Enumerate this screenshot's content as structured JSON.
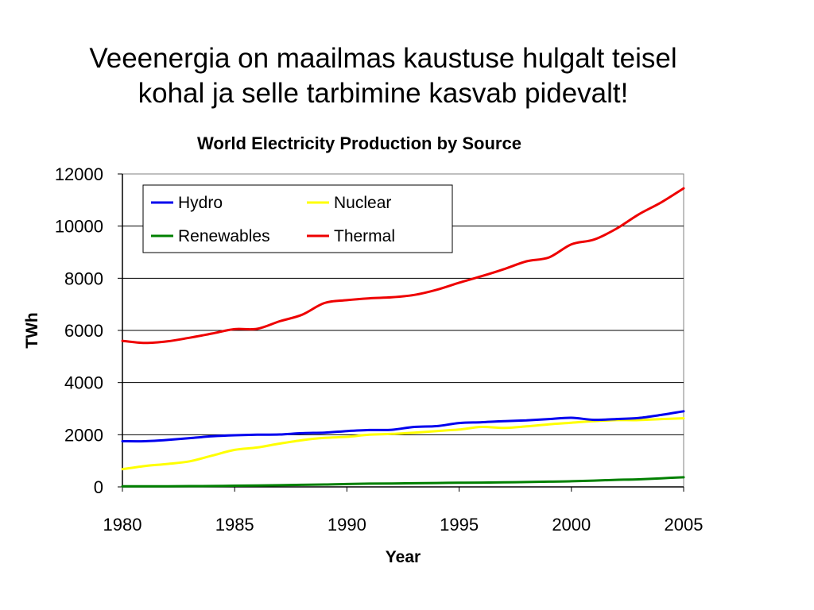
{
  "slide": {
    "title_line1": "Veeenergia on maailmas kaustuse hulgalt teisel",
    "title_line2": "kohal ja selle tarbimine kasvab pidevalt!"
  },
  "chart_data": {
    "type": "line",
    "title": "World Electricity Production by Source",
    "xlabel": "Year",
    "ylabel": "TWh",
    "xlim": [
      1980,
      2005
    ],
    "ylim": [
      0,
      12000
    ],
    "x_ticks": [
      1980,
      1985,
      1990,
      1995,
      2000,
      2005
    ],
    "y_ticks": [
      0,
      2000,
      4000,
      6000,
      8000,
      10000,
      12000
    ],
    "grid": "horizontal",
    "legend_position": "top-left",
    "x": [
      1980,
      1981,
      1982,
      1983,
      1984,
      1985,
      1986,
      1987,
      1988,
      1989,
      1990,
      1991,
      1992,
      1993,
      1994,
      1995,
      1996,
      1997,
      1998,
      1999,
      2000,
      2001,
      2002,
      2003,
      2004,
      2005
    ],
    "series": [
      {
        "name": "Hydro",
        "color": "#0000ee",
        "values": [
          1750,
          1750,
          1800,
          1870,
          1940,
          1980,
          2000,
          2010,
          2060,
          2080,
          2140,
          2180,
          2190,
          2300,
          2330,
          2450,
          2480,
          2520,
          2550,
          2600,
          2650,
          2570,
          2600,
          2640,
          2760,
          2900
        ]
      },
      {
        "name": "Nuclear",
        "color": "#ffff00",
        "values": [
          680,
          800,
          880,
          980,
          1200,
          1420,
          1510,
          1660,
          1790,
          1880,
          1920,
          2000,
          2030,
          2080,
          2140,
          2200,
          2300,
          2260,
          2320,
          2400,
          2460,
          2520,
          2560,
          2560,
          2600,
          2630
        ]
      },
      {
        "name": "Renewables",
        "color": "#008000",
        "values": [
          20,
          22,
          25,
          30,
          35,
          45,
          55,
          65,
          80,
          90,
          110,
          125,
          130,
          140,
          150,
          160,
          165,
          175,
          185,
          200,
          215,
          240,
          270,
          290,
          330,
          370
        ]
      },
      {
        "name": "Thermal",
        "color": "#ee0000",
        "values": [
          5600,
          5520,
          5580,
          5720,
          5880,
          6050,
          6060,
          6350,
          6600,
          7050,
          7160,
          7230,
          7270,
          7360,
          7560,
          7830,
          8080,
          8350,
          8650,
          8800,
          9300,
          9480,
          9900,
          10450,
          10910,
          11450
        ]
      }
    ]
  }
}
